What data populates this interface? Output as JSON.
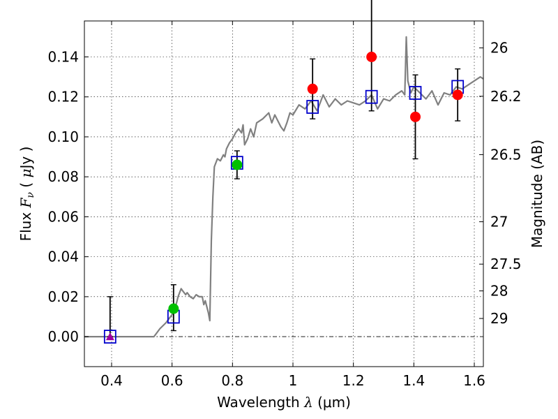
{
  "chart_data": {
    "type": "scatter",
    "xlabel": "Wavelength  λ (μm)",
    "xlabel_main": "Wavelength",
    "xlabel_symbol": "λ",
    "xlabel_unit": "(μm)",
    "ylabel": "Flux  Fν  ( μJy )",
    "ylabel_main": "Flux",
    "ylabel_symbol": "F",
    "ylabel_subscript": "ν",
    "ylabel_unit_open": "( ",
    "ylabel_unit_mu": "μ",
    "ylabel_unit_rest": "Jy )",
    "y2label": "Magnitude (AB)",
    "xlim": [
      0.31,
      1.63
    ],
    "ylim": [
      -0.015,
      0.158
    ],
    "grid": true,
    "x_ticks": [
      0.4,
      0.6,
      0.8,
      1.0,
      1.2,
      1.4,
      1.6
    ],
    "x_tick_labels": [
      "0.4",
      "0.6",
      "0.8",
      "1",
      "1.2",
      "1.4",
      "1.6"
    ],
    "y_ticks": [
      0.0,
      0.02,
      0.04,
      0.06,
      0.08,
      0.1,
      0.12,
      0.14
    ],
    "y_tick_labels": [
      "0.00",
      "0.02",
      "0.04",
      "0.06",
      "0.08",
      "0.10",
      "0.12",
      "0.14"
    ],
    "magnitude_ticks": [
      {
        "label": "26",
        "flux": 0.1445
      },
      {
        "label": "26.2",
        "flux": 0.1203
      },
      {
        "label": "26.5",
        "flux": 0.0911
      },
      {
        "label": "27",
        "flux": 0.0575
      },
      {
        "label": "27.5",
        "flux": 0.0363
      },
      {
        "label": "28",
        "flux": 0.0229
      },
      {
        "label": "29",
        "flux": 0.0091
      }
    ],
    "zero_line": {
      "y": 0.0,
      "style": "dash-dot",
      "color": "#000000"
    },
    "series": [
      {
        "name": "template_spectrum",
        "kind": "line",
        "color": "#808080",
        "x": [
          0.31,
          0.54,
          0.56,
          0.58,
          0.59,
          0.6,
          0.61,
          0.62,
          0.63,
          0.635,
          0.645,
          0.65,
          0.66,
          0.67,
          0.68,
          0.69,
          0.7,
          0.705,
          0.71,
          0.715,
          0.72,
          0.725,
          0.73,
          0.735,
          0.74,
          0.75,
          0.76,
          0.77,
          0.775,
          0.78,
          0.79,
          0.8,
          0.81,
          0.82,
          0.83,
          0.835,
          0.84,
          0.85,
          0.86,
          0.87,
          0.88,
          0.9,
          0.92,
          0.93,
          0.94,
          0.96,
          0.97,
          0.98,
          0.99,
          1.0,
          1.02,
          1.04,
          1.06,
          1.08,
          1.1,
          1.12,
          1.14,
          1.16,
          1.18,
          1.2,
          1.22,
          1.24,
          1.26,
          1.28,
          1.3,
          1.32,
          1.34,
          1.36,
          1.37,
          1.375,
          1.38,
          1.39,
          1.4,
          1.42,
          1.44,
          1.46,
          1.48,
          1.5,
          1.52,
          1.54,
          1.56,
          1.58,
          1.6,
          1.62,
          1.63
        ],
        "y": [
          0.0,
          0.0,
          0.004,
          0.007,
          0.009,
          0.011,
          0.014,
          0.02,
          0.024,
          0.023,
          0.021,
          0.022,
          0.02,
          0.019,
          0.021,
          0.02,
          0.02,
          0.016,
          0.018,
          0.015,
          0.012,
          0.008,
          0.048,
          0.07,
          0.085,
          0.089,
          0.088,
          0.091,
          0.09,
          0.094,
          0.097,
          0.099,
          0.102,
          0.104,
          0.102,
          0.106,
          0.096,
          0.099,
          0.104,
          0.1,
          0.107,
          0.109,
          0.112,
          0.107,
          0.111,
          0.105,
          0.103,
          0.107,
          0.112,
          0.111,
          0.116,
          0.114,
          0.118,
          0.113,
          0.121,
          0.115,
          0.119,
          0.116,
          0.118,
          0.117,
          0.116,
          0.118,
          0.121,
          0.114,
          0.119,
          0.118,
          0.121,
          0.123,
          0.121,
          0.15,
          0.128,
          0.122,
          0.125,
          0.122,
          0.119,
          0.123,
          0.116,
          0.122,
          0.121,
          0.125,
          0.124,
          0.126,
          0.128,
          0.13,
          0.129
        ]
      },
      {
        "name": "model_photometry",
        "kind": "scatter",
        "marker": "open-square",
        "color": "#0000cc",
        "points": [
          {
            "x": 0.395,
            "y": 0.0
          },
          {
            "x": 0.605,
            "y": 0.01
          },
          {
            "x": 0.815,
            "y": 0.087
          },
          {
            "x": 1.065,
            "y": 0.115
          },
          {
            "x": 1.26,
            "y": 0.12
          },
          {
            "x": 1.405,
            "y": 0.122
          },
          {
            "x": 1.545,
            "y": 0.125
          }
        ]
      },
      {
        "name": "observed_detections",
        "kind": "scatter",
        "marker": "filled-circle",
        "points": [
          {
            "x": 0.605,
            "y": 0.014,
            "yerr_low": 0.011,
            "yerr_high": 0.012,
            "color": "#00c000"
          },
          {
            "x": 0.815,
            "y": 0.086,
            "yerr_low": 0.007,
            "yerr_high": 0.007,
            "color": "#00c000"
          },
          {
            "x": 1.065,
            "y": 0.124,
            "yerr_low": 0.015,
            "yerr_high": 0.015,
            "color": "#ff0000"
          },
          {
            "x": 1.26,
            "y": 0.14,
            "yerr_low": 0.027,
            "yerr_high": 0.03,
            "color": "#ff0000"
          },
          {
            "x": 1.405,
            "y": 0.11,
            "yerr_low": 0.021,
            "yerr_high": 0.021,
            "color": "#ff0000"
          },
          {
            "x": 1.545,
            "y": 0.121,
            "yerr_low": 0.013,
            "yerr_high": 0.013,
            "color": "#ff0000"
          }
        ]
      },
      {
        "name": "observed_nondetection",
        "kind": "scatter",
        "marker": "triangle",
        "points": [
          {
            "x": 0.395,
            "y": 0.0,
            "yerr_low": 0.0,
            "yerr_high": 0.02,
            "color": "#a000a0"
          }
        ]
      }
    ]
  }
}
